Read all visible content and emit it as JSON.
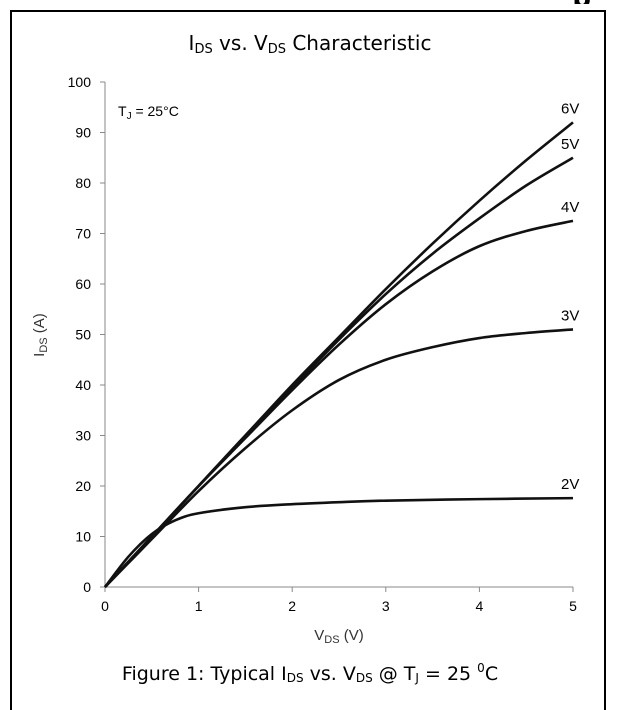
{
  "chart_data": {
    "type": "line",
    "title": {
      "main1": "I",
      "sub1": "DS",
      "main2": " vs. V",
      "sub2": "DS",
      "main3": " Characteristic"
    },
    "ylabel": {
      "main": "I",
      "sub": "DS",
      "rest": " (A)"
    },
    "xlabel": {
      "main": "V",
      "sub": "DS",
      "rest": " (V)"
    },
    "annotation": {
      "main": "T",
      "sub": "J",
      "rest": " = 25°C"
    },
    "xlim": [
      0,
      5
    ],
    "ylim": [
      0,
      100
    ],
    "x_ticks": [
      "0",
      "1",
      "2",
      "3",
      "4",
      "5"
    ],
    "y_ticks": [
      "0",
      "10",
      "20",
      "30",
      "40",
      "50",
      "60",
      "70",
      "80",
      "90",
      "100"
    ],
    "grid": false,
    "series": [
      {
        "name": "2V",
        "x": [
          0,
          0.25,
          0.5,
          0.75,
          1,
          1.5,
          2,
          2.5,
          3,
          4,
          5
        ],
        "y": [
          0,
          6,
          10.5,
          13.2,
          14.6,
          15.8,
          16.4,
          16.8,
          17.1,
          17.4,
          17.6
        ]
      },
      {
        "name": "3V",
        "x": [
          0,
          0.5,
          1,
          1.5,
          2,
          2.5,
          3,
          3.5,
          4,
          4.5,
          5
        ],
        "y": [
          0,
          9.5,
          19,
          27.5,
          35,
          41,
          45,
          47.5,
          49.3,
          50.3,
          51
        ]
      },
      {
        "name": "4V",
        "x": [
          0,
          0.5,
          1,
          1.5,
          2,
          2.5,
          3,
          3.5,
          4,
          4.5,
          5
        ],
        "y": [
          0,
          10,
          20,
          29.5,
          39,
          48,
          56,
          62.5,
          67.5,
          70.5,
          72.5
        ]
      },
      {
        "name": "5V",
        "x": [
          0,
          0.5,
          1,
          1.5,
          2,
          2.5,
          3,
          3.5,
          4,
          4.5,
          5
        ],
        "y": [
          0,
          10,
          20,
          30,
          39.5,
          49,
          58,
          66,
          73,
          79.5,
          85
        ]
      },
      {
        "name": "6V",
        "x": [
          0,
          0.5,
          1,
          1.5,
          2,
          2.5,
          3,
          3.5,
          4,
          4.5,
          5
        ],
        "y": [
          0,
          10,
          20,
          30,
          40,
          49.5,
          59,
          68,
          76.5,
          84.5,
          92
        ]
      }
    ]
  },
  "caption": {
    "prefix": "Figure 1: Typical I",
    "sub1": "DS",
    "mid": " vs. V",
    "sub2": "DS",
    "mid2": " @ T",
    "sub3": "J",
    "mid3": " = 25 ",
    "sup": "0",
    "suffix": "C"
  },
  "header_fragment": "p"
}
